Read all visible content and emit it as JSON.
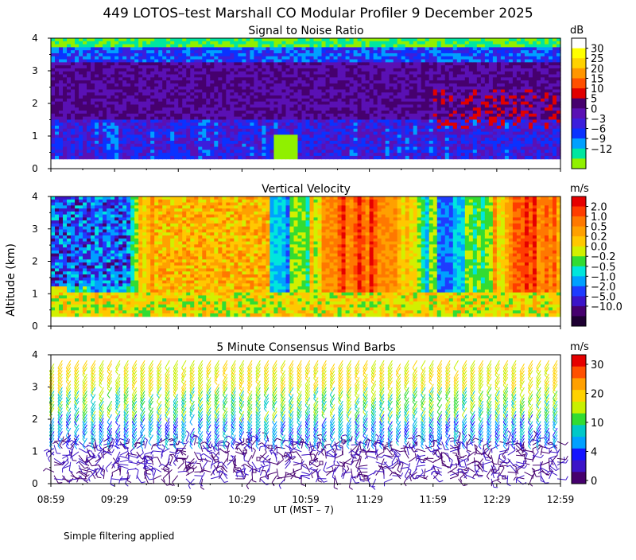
{
  "title": "449 LOTOS–test Marshall CO Modular Profiler  9 December 2025",
  "footnote": "Simple filtering applied",
  "y_axis_label": "Altitude (km)",
  "x_axis": {
    "label": "UT  (MST – 7)",
    "ticks": [
      "08:59",
      "09:29",
      "09:59",
      "10:29",
      "10:59",
      "11:29",
      "11:59",
      "12:29",
      "12:59"
    ]
  },
  "chart_data": [
    {
      "type": "heatmap",
      "title": "Signal to Noise Ratio",
      "ylim": [
        0,
        4
      ],
      "yticks": [
        "0",
        "1",
        "2",
        "3",
        "4"
      ],
      "colorbar_unit": "dB",
      "colorbar_labels": [
        "30",
        "25",
        "20",
        "15",
        "10",
        "5",
        "0",
        "−3",
        "−6",
        "−9",
        "−12"
      ],
      "colorbar_colors": [
        "#ffffff",
        "#ffff00",
        "#ffd200",
        "#ff9600",
        "#ff5000",
        "#e10000",
        "#46006e",
        "#5a10b4",
        "#3c1edc",
        "#0a32ff",
        "#00a0ff",
        "#00e6a0",
        "#90f000"
      ]
    },
    {
      "type": "heatmap",
      "title": "Vertical Velocity",
      "ylim": [
        0,
        4
      ],
      "yticks": [
        "0",
        "1",
        "2",
        "3",
        "4"
      ],
      "colorbar_unit": "m/s",
      "colorbar_labels": [
        "2.0",
        "1.0",
        "0.5",
        "0.2",
        "0.0",
        "−0.2",
        "−0.5",
        "−1.0",
        "−2.0",
        "−5.0",
        "−10.0"
      ],
      "colorbar_colors": [
        "#e60000",
        "#ff3c00",
        "#ff7800",
        "#ffa000",
        "#ffc800",
        "#d2f000",
        "#32dc32",
        "#00e6dc",
        "#00a0ff",
        "#1e3cff",
        "#3c14c8",
        "#46006e",
        "#1e0032"
      ]
    },
    {
      "type": "scatter",
      "title": "5 Minute Consensus Wind Barbs",
      "ylim": [
        0,
        4
      ],
      "yticks": [
        "0",
        "1",
        "2",
        "3",
        "4"
      ],
      "colorbar_unit": "m/s",
      "colorbar_labels": [
        "30",
        "20",
        "10",
        "4",
        "0"
      ],
      "colorbar_colors": [
        "#e60000",
        "#ff5000",
        "#ffa000",
        "#ffd200",
        "#c8f000",
        "#32dc32",
        "#00c8c8",
        "#00a0ff",
        "#1414ff",
        "#3c14c8",
        "#46006e"
      ]
    }
  ]
}
